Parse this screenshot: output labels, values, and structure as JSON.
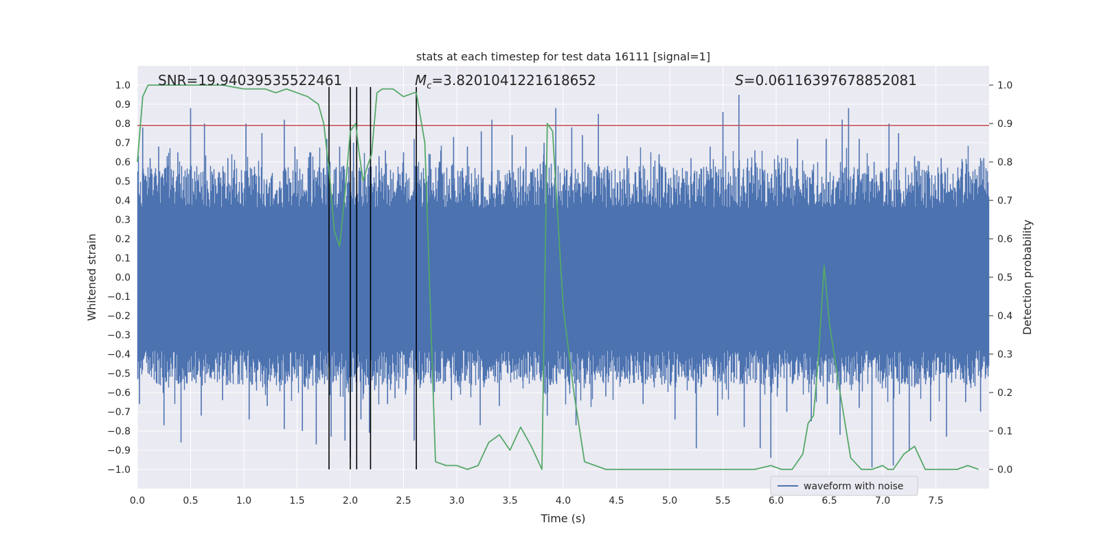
{
  "chart_data": {
    "type": "line",
    "title": "stats at each timestep for test data 16111 [signal=1]",
    "xlabel": "Time (s)",
    "ylabel_left": "Whitened strain",
    "ylabel_right": "Detection probability",
    "xlim": [
      0.0,
      8.0
    ],
    "ylim_left": [
      -1.1,
      1.1
    ],
    "ylim_right": [
      -0.05,
      1.05
    ],
    "x_ticks": [
      "0.0",
      "0.5",
      "1.0",
      "1.5",
      "2.0",
      "2.5",
      "3.0",
      "3.5",
      "4.0",
      "4.5",
      "5.0",
      "5.5",
      "6.0",
      "6.5",
      "7.0",
      "7.5"
    ],
    "y_left_ticks": [
      "1.0",
      "0.9",
      "0.8",
      "0.7",
      "0.6",
      "0.5",
      "0.4",
      "0.3",
      "0.2",
      "0.1",
      "0.0",
      "−0.1",
      "−0.2",
      "−0.3",
      "−0.4",
      "−0.5",
      "−0.6",
      "−0.7",
      "−0.8",
      "−0.9",
      "−1.0"
    ],
    "y_right_ticks": [
      "1.0",
      "0.9",
      "0.8",
      "0.7",
      "0.6",
      "0.5",
      "0.4",
      "0.3",
      "0.2",
      "0.1",
      "0.0"
    ],
    "annotations": {
      "snr": "SNR=19.94039535522461",
      "mc_symbol": "M",
      "mc_sub": "c",
      "mc_value": "=3.8201041221618652",
      "s_symbol": "S",
      "s_value": "=0.06116397678852081"
    },
    "legend": {
      "label": "waveform with noise",
      "location": "lower-right"
    },
    "threshold_left": 0.79,
    "vertical_lines_x": [
      1.8,
      2.0,
      2.06,
      2.19,
      2.62
    ],
    "spikes_top": [
      [
        0.05,
        0.78
      ],
      [
        0.12,
        0.62
      ],
      [
        0.2,
        0.68
      ],
      [
        0.28,
        0.63
      ],
      [
        0.38,
        0.65
      ],
      [
        0.5,
        0.88
      ],
      [
        0.63,
        0.8
      ],
      [
        0.85,
        0.62
      ],
      [
        1.02,
        0.8
      ],
      [
        1.17,
        0.75
      ],
      [
        1.38,
        0.82
      ],
      [
        1.48,
        0.68
      ],
      [
        1.62,
        0.65
      ],
      [
        1.78,
        0.72
      ],
      [
        1.9,
        0.68
      ],
      [
        2.03,
        0.7
      ],
      [
        2.27,
        0.63
      ],
      [
        2.33,
        0.66
      ],
      [
        2.5,
        0.65
      ],
      [
        2.6,
        0.72
      ],
      [
        2.75,
        0.64
      ],
      [
        2.85,
        0.66
      ],
      [
        2.97,
        0.73
      ],
      [
        3.1,
        0.68
      ],
      [
        3.23,
        0.76
      ],
      [
        3.33,
        0.82
      ],
      [
        3.52,
        0.74
      ],
      [
        3.65,
        0.68
      ],
      [
        3.82,
        0.7
      ],
      [
        3.93,
        0.88
      ],
      [
        4.08,
        0.78
      ],
      [
        4.18,
        0.74
      ],
      [
        4.33,
        0.85
      ],
      [
        4.6,
        0.63
      ],
      [
        4.9,
        0.64
      ],
      [
        5.2,
        0.62
      ],
      [
        5.38,
        0.68
      ],
      [
        5.5,
        0.86
      ],
      [
        5.65,
        0.95
      ],
      [
        5.8,
        0.66
      ],
      [
        6.05,
        0.62
      ],
      [
        6.2,
        0.72
      ],
      [
        6.47,
        0.72
      ],
      [
        6.62,
        0.82
      ],
      [
        6.68,
        0.88
      ],
      [
        6.78,
        0.72
      ],
      [
        6.92,
        0.6
      ],
      [
        7.06,
        0.8
      ],
      [
        7.15,
        0.75
      ],
      [
        7.3,
        0.63
      ],
      [
        7.55,
        0.62
      ],
      [
        7.75,
        0.6
      ],
      [
        7.95,
        0.62
      ]
    ],
    "spikes_bottom": [
      [
        0.02,
        -0.66
      ],
      [
        0.25,
        -0.77
      ],
      [
        0.41,
        -0.86
      ],
      [
        0.6,
        -0.72
      ],
      [
        0.8,
        -0.64
      ],
      [
        1.05,
        -0.74
      ],
      [
        1.22,
        -0.67
      ],
      [
        1.38,
        -0.79
      ],
      [
        1.55,
        -0.8
      ],
      [
        1.68,
        -0.87
      ],
      [
        1.82,
        -0.83
      ],
      [
        1.95,
        -0.85
      ],
      [
        2.0,
        -0.94
      ],
      [
        2.1,
        -0.74
      ],
      [
        2.18,
        -0.81
      ],
      [
        2.35,
        -0.66
      ],
      [
        2.42,
        -0.63
      ],
      [
        2.6,
        -0.85
      ],
      [
        2.78,
        -0.62
      ],
      [
        2.95,
        -0.64
      ],
      [
        3.22,
        -0.77
      ],
      [
        3.4,
        -0.67
      ],
      [
        3.62,
        -0.54
      ],
      [
        3.85,
        -0.72
      ],
      [
        4.12,
        -0.77
      ],
      [
        4.4,
        -0.62
      ],
      [
        4.75,
        -0.66
      ],
      [
        5.05,
        -0.74
      ],
      [
        5.25,
        -0.89
      ],
      [
        5.45,
        -0.72
      ],
      [
        5.7,
        -0.78
      ],
      [
        5.85,
        -0.89
      ],
      [
        5.95,
        -0.94
      ],
      [
        6.1,
        -0.7
      ],
      [
        6.33,
        -0.75
      ],
      [
        6.48,
        -0.66
      ],
      [
        6.6,
        -0.82
      ],
      [
        6.78,
        -0.68
      ],
      [
        6.9,
        -0.99
      ],
      [
        7.1,
        -0.98
      ],
      [
        7.25,
        -0.9
      ],
      [
        7.45,
        -0.75
      ],
      [
        7.6,
        -0.83
      ],
      [
        7.78,
        -0.65
      ],
      [
        7.92,
        -0.7
      ]
    ],
    "detection_probability": {
      "x": [
        0.0,
        0.05,
        0.1,
        0.2,
        0.3,
        0.5,
        0.8,
        1.0,
        1.2,
        1.3,
        1.4,
        1.5,
        1.6,
        1.7,
        1.75,
        1.8,
        1.85,
        1.9,
        1.95,
        2.0,
        2.05,
        2.08,
        2.12,
        2.15,
        2.2,
        2.25,
        2.3,
        2.4,
        2.5,
        2.6,
        2.62,
        2.7,
        2.8,
        2.9,
        3.0,
        3.1,
        3.2,
        3.3,
        3.4,
        3.5,
        3.6,
        3.7,
        3.8,
        3.85,
        3.9,
        4.0,
        4.1,
        4.2,
        4.4,
        4.6,
        4.8,
        5.0,
        5.2,
        5.4,
        5.6,
        5.8,
        5.95,
        6.05,
        6.15,
        6.25,
        6.3,
        6.35,
        6.4,
        6.45,
        6.5,
        6.6,
        6.7,
        6.8,
        6.9,
        7.0,
        7.05,
        7.1,
        7.2,
        7.3,
        7.4,
        7.5,
        7.6,
        7.7,
        7.8,
        7.9
      ],
      "y": [
        0.8,
        0.97,
        1.0,
        1.0,
        1.0,
        1.0,
        1.0,
        0.99,
        0.99,
        0.98,
        0.99,
        0.98,
        0.97,
        0.95,
        0.9,
        0.78,
        0.62,
        0.58,
        0.72,
        0.88,
        0.9,
        0.83,
        0.75,
        0.78,
        0.82,
        0.98,
        0.99,
        0.99,
        0.97,
        0.98,
        0.98,
        0.85,
        0.02,
        0.01,
        0.01,
        0.0,
        0.01,
        0.07,
        0.09,
        0.05,
        0.11,
        0.06,
        0.0,
        0.9,
        0.88,
        0.42,
        0.2,
        0.02,
        0.0,
        0.0,
        0.0,
        0.0,
        0.0,
        0.0,
        0.0,
        0.0,
        0.01,
        0.0,
        0.0,
        0.04,
        0.12,
        0.14,
        0.3,
        0.53,
        0.38,
        0.2,
        0.03,
        0.0,
        0.0,
        0.01,
        0.0,
        0.0,
        0.04,
        0.06,
        0.0,
        0.0,
        0.0,
        0.0,
        0.01,
        0.0
      ]
    },
    "colors": {
      "background": "#eaeaf2",
      "grid": "#ffffff",
      "waveform": "#4c72b0",
      "probability": "#55a868",
      "threshold": "#c44e52",
      "vlines": "#000000"
    }
  }
}
